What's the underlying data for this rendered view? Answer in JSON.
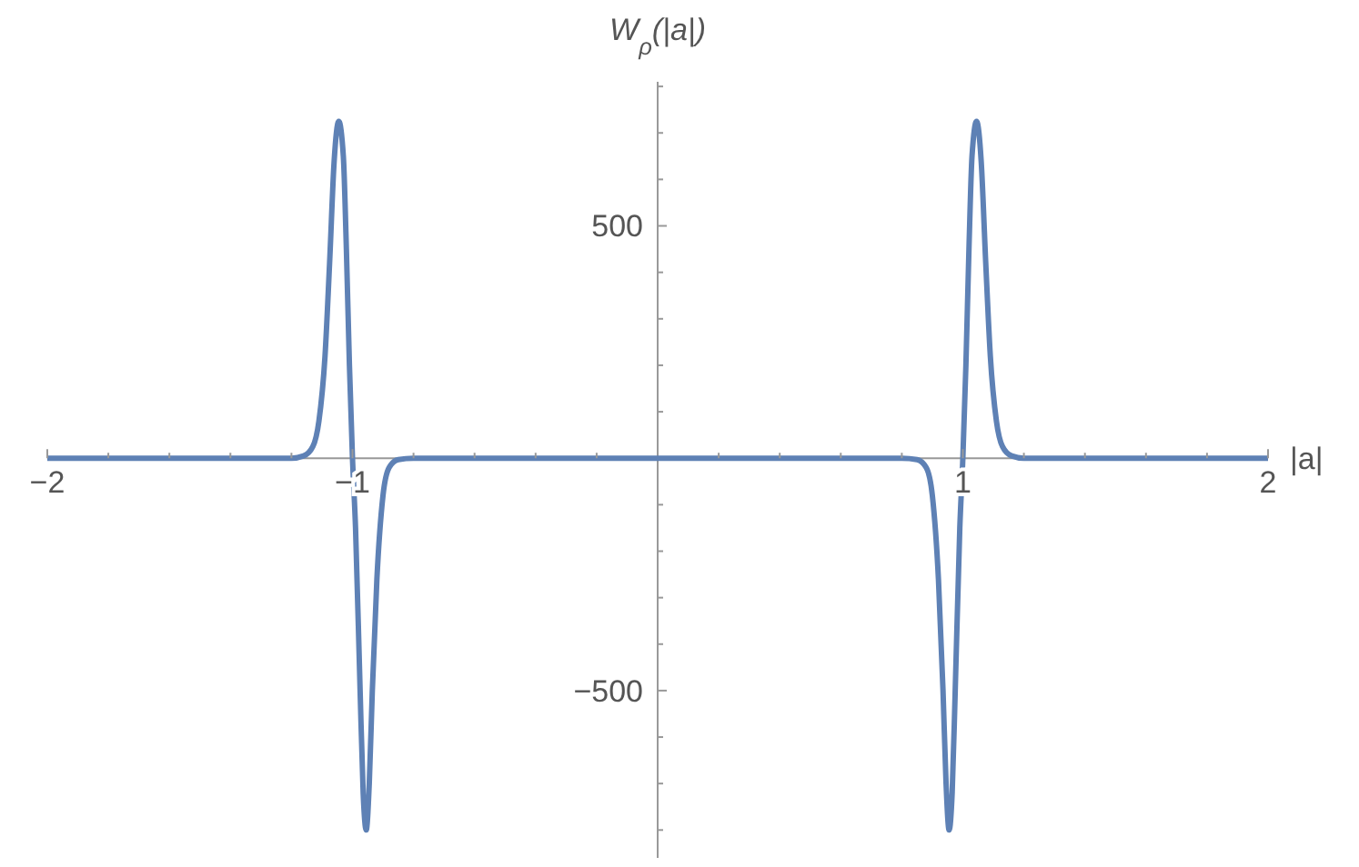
{
  "chart_data": {
    "type": "line",
    "xlabel": "|a|",
    "ylabel": "W$_{ρ}$(|a|)",
    "xlim": [
      -2,
      2
    ],
    "ylim": [
      -860,
      810
    ],
    "xticks": [
      {
        "value": -2,
        "label": "−2"
      },
      {
        "value": -1.8,
        "label": null
      },
      {
        "value": -1.6,
        "label": null
      },
      {
        "value": -1.4,
        "label": null
      },
      {
        "value": -1.2,
        "label": null
      },
      {
        "value": -1,
        "label": "−1"
      },
      {
        "value": -0.8,
        "label": null
      },
      {
        "value": -0.6,
        "label": null
      },
      {
        "value": -0.4,
        "label": null
      },
      {
        "value": -0.2,
        "label": null
      },
      {
        "value": 0.2,
        "label": null
      },
      {
        "value": 0.4,
        "label": null
      },
      {
        "value": 0.6,
        "label": null
      },
      {
        "value": 0.8,
        "label": null
      },
      {
        "value": 1,
        "label": "1"
      },
      {
        "value": 1.2,
        "label": null
      },
      {
        "value": 1.4,
        "label": null
      },
      {
        "value": 1.6,
        "label": null
      },
      {
        "value": 1.8,
        "label": null
      },
      {
        "value": 2,
        "label": "2"
      }
    ],
    "yticks": [
      {
        "value": -800,
        "label": null
      },
      {
        "value": -700,
        "label": null
      },
      {
        "value": -600,
        "label": null
      },
      {
        "value": -500,
        "label": "−500"
      },
      {
        "value": -400,
        "label": null
      },
      {
        "value": -300,
        "label": null
      },
      {
        "value": -200,
        "label": null
      },
      {
        "value": -100,
        "label": null
      },
      {
        "value": 100,
        "label": null
      },
      {
        "value": 200,
        "label": null
      },
      {
        "value": 300,
        "label": null
      },
      {
        "value": 400,
        "label": null
      },
      {
        "value": 500,
        "label": "500"
      },
      {
        "value": 600,
        "label": null
      },
      {
        "value": 700,
        "label": null
      },
      {
        "value": 800,
        "label": null
      }
    ],
    "grid": false,
    "marker": "none",
    "line_style": "solid",
    "series": [
      {
        "color": "#5e81b5",
        "x": [
          -2,
          -1.2,
          -1.16,
          -1.13,
          -1.11,
          -1.09,
          -1.075,
          -1.06,
          -1.045,
          -1.03,
          -1.02,
          -1.01,
          -1.0,
          -0.99,
          -0.975,
          -0.965,
          -0.955,
          -0.945,
          -0.935,
          -0.92,
          -0.9,
          -0.88,
          -0.85,
          -0.8,
          0.8,
          0.85,
          0.88,
          0.9,
          0.92,
          0.935,
          0.945,
          0.955,
          0.965,
          0.975,
          0.99,
          1.0,
          1.01,
          1.02,
          1.03,
          1.045,
          1.06,
          1.075,
          1.09,
          1.11,
          1.13,
          1.16,
          1.2,
          2
        ],
        "values": [
          0,
          0,
          5,
          25,
          80,
          220,
          420,
          640,
          725,
          650,
          450,
          200,
          0,
          -150,
          -500,
          -720,
          -800,
          -700,
          -500,
          -260,
          -80,
          -20,
          -3,
          0,
          0,
          -3,
          -20,
          -80,
          -260,
          -500,
          -700,
          -800,
          -720,
          -500,
          -150,
          0,
          200,
          450,
          650,
          725,
          640,
          420,
          220,
          80,
          25,
          5,
          0,
          0
        ]
      }
    ]
  }
}
